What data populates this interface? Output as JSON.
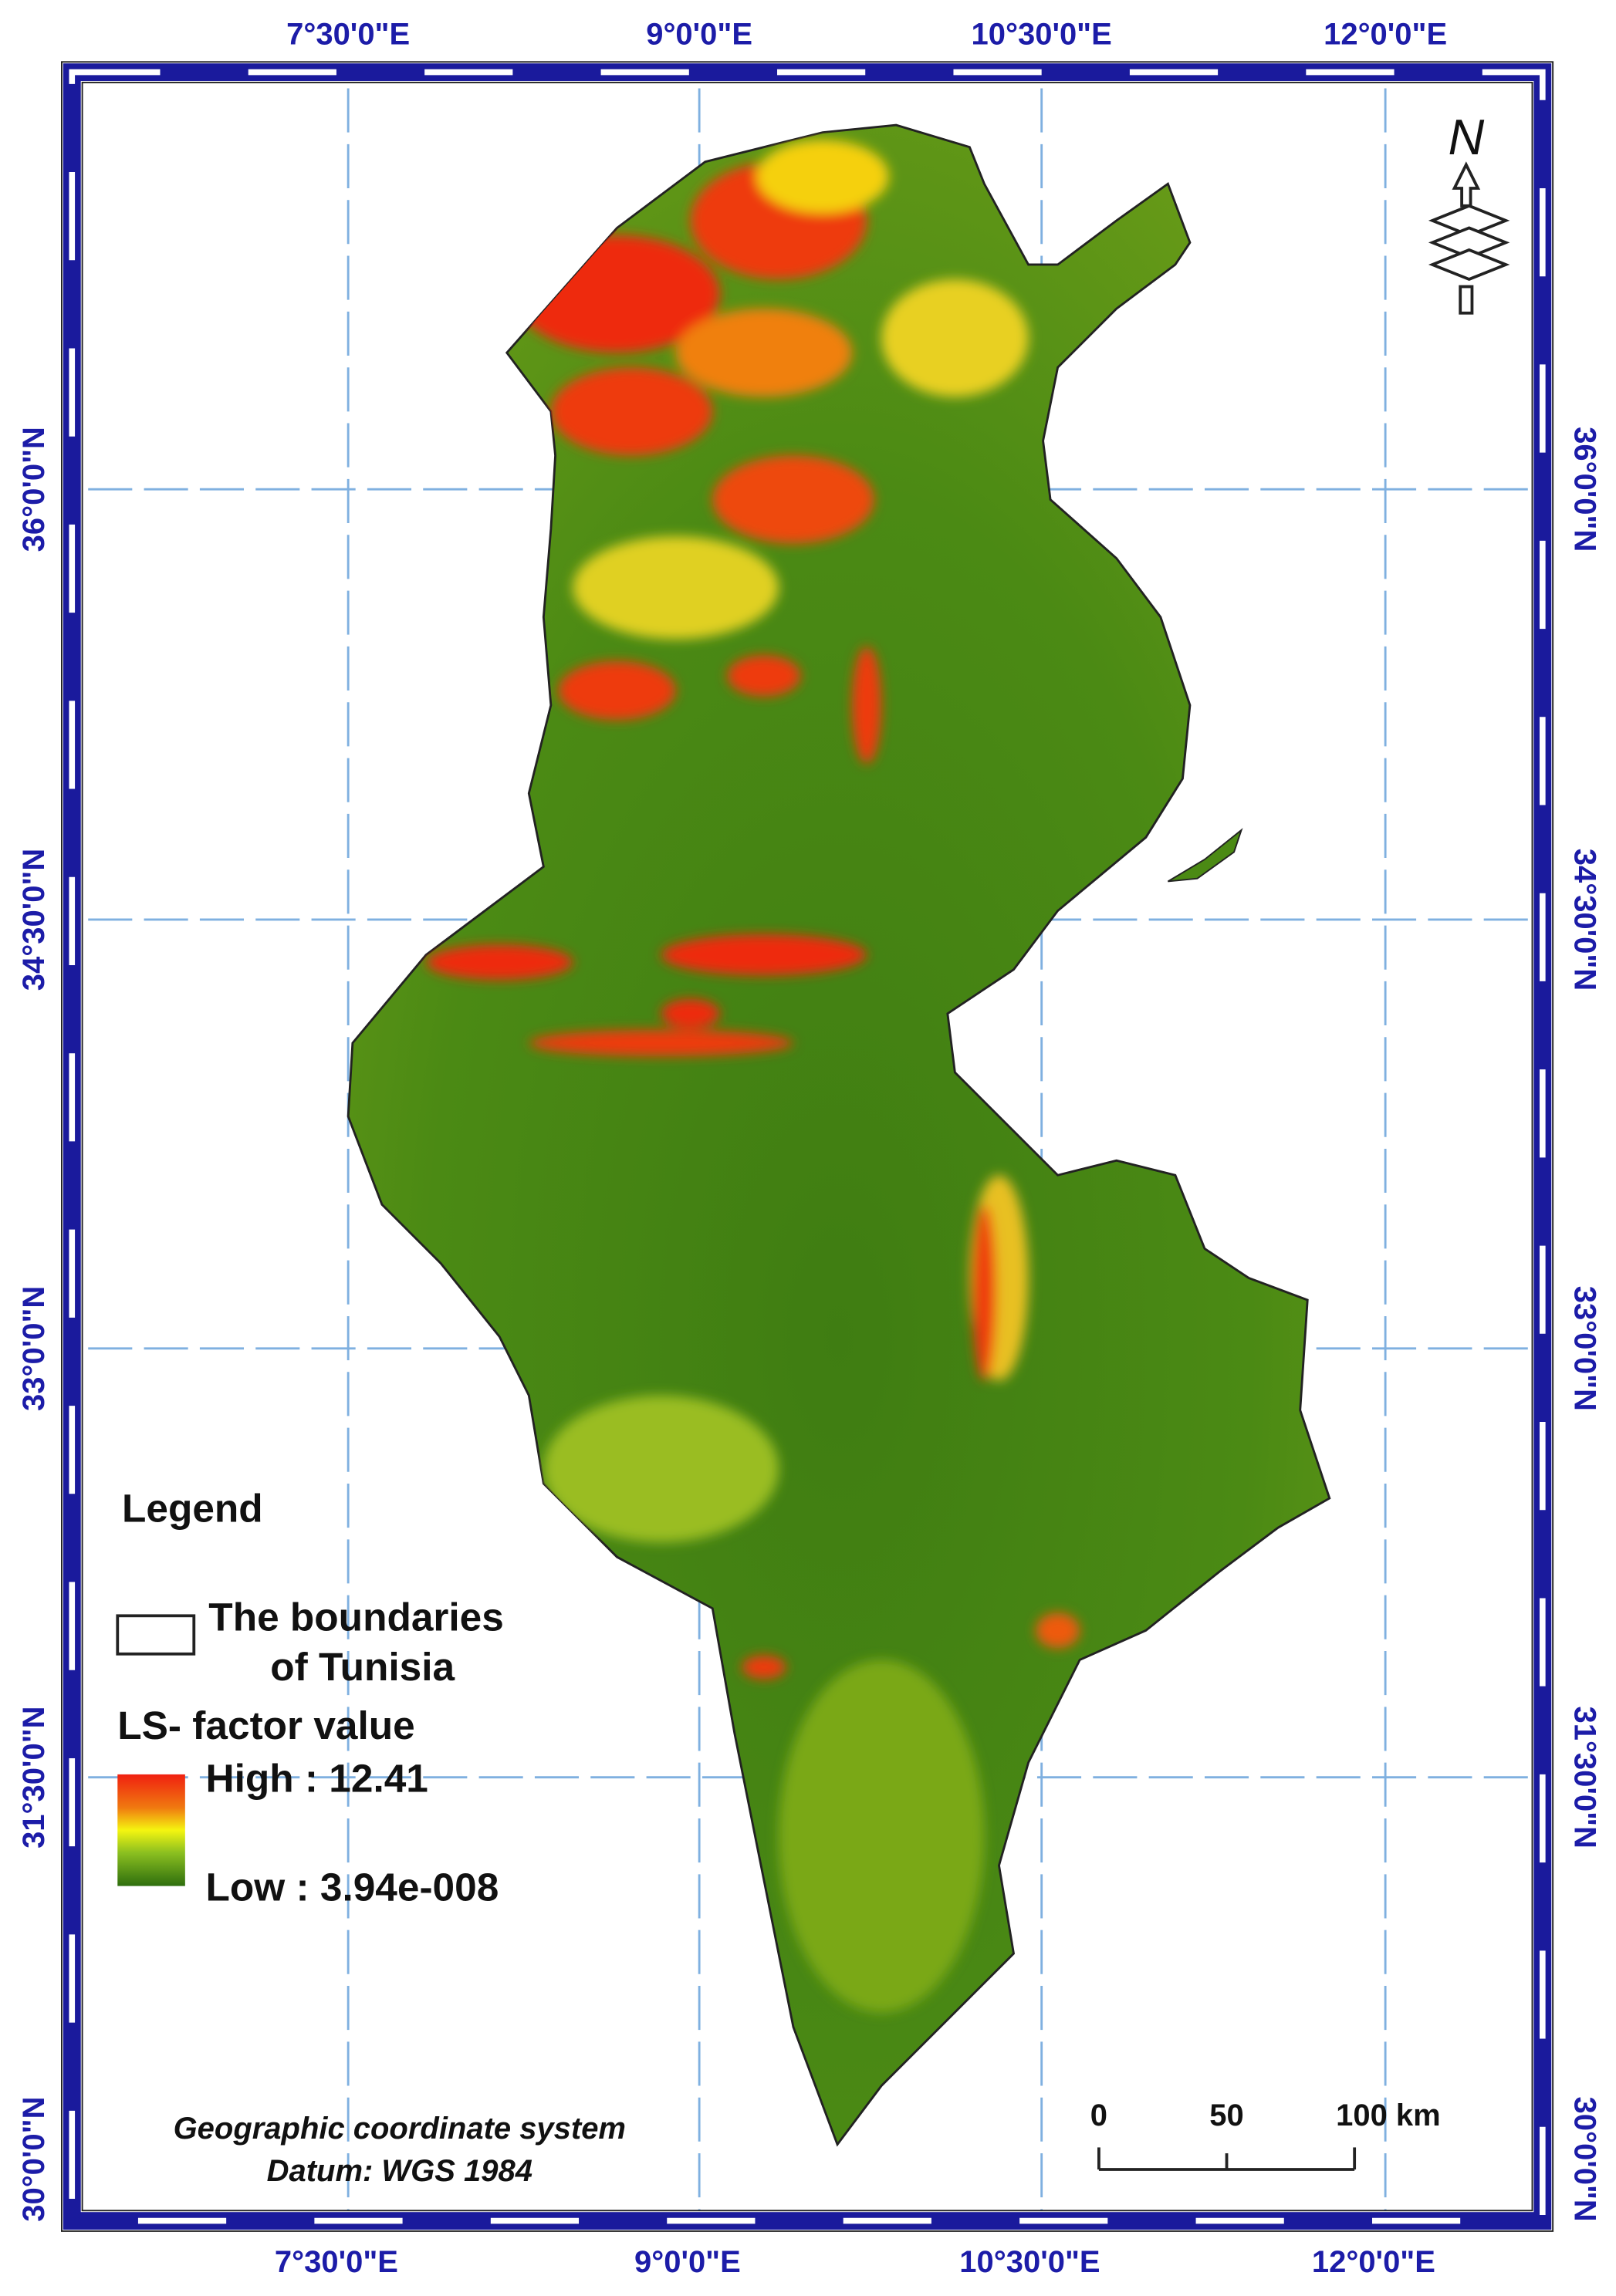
{
  "map": {
    "top_labels": [
      "7°30'0\"E",
      "9°0'0\"E",
      "10°30'0\"E",
      "12°0'0\"E"
    ],
    "bottom_labels": [
      "7°30'0\"E",
      "9°0'0\"E",
      "10°30'0\"E",
      "12°0'0\"E"
    ],
    "left_labels": [
      "36°0'0\"N",
      "34°30'0\"N",
      "33°0'0\"N",
      "31°30'0\"N",
      "30°0'0\"N"
    ],
    "right_labels": [
      "36°0'0\"N",
      "34°30'0\"N",
      "33°0'0\"N",
      "31°30'0\"N",
      "30°0'0\"N"
    ],
    "north": "N",
    "legend": {
      "title": "Legend",
      "boundary": [
        "The boundaries",
        "of Tunisia"
      ],
      "field": "LS- factor value",
      "high": "High : 12.41",
      "low": "Low : 3.94e-008"
    },
    "scale": [
      "0",
      "50",
      "100 km"
    ],
    "crs": [
      "Geographic coordinate system",
      "Datum: WGS 1984"
    ]
  }
}
